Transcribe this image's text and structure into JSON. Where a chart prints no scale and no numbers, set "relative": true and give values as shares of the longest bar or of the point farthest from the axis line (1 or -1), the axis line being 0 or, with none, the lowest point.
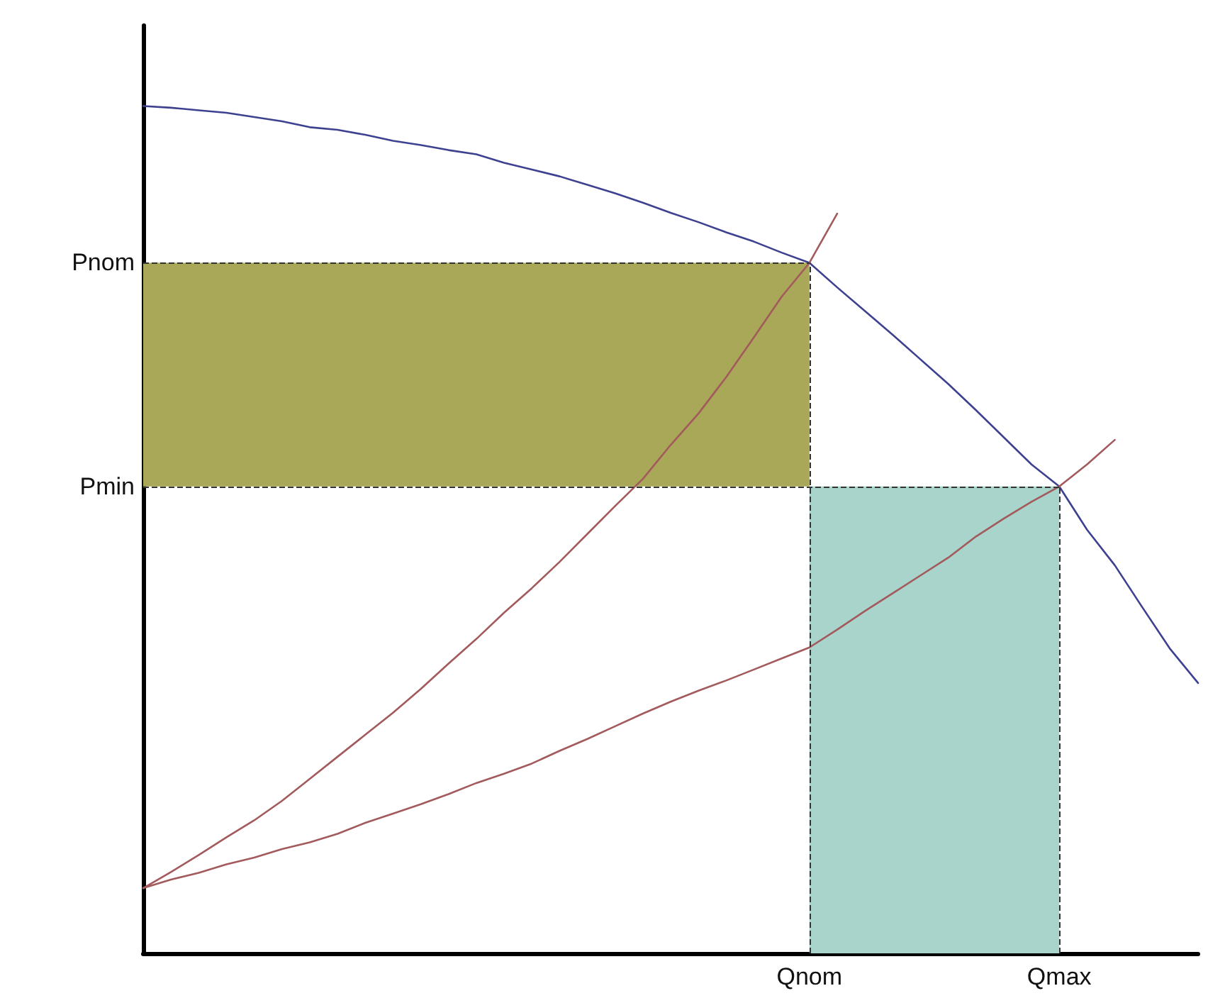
{
  "chart_data": {
    "type": "line",
    "relative": true,
    "marker": "none",
    "line_style": "solid",
    "categories": [
      null,
      null,
      null,
      null,
      null,
      null,
      null,
      null,
      null,
      null,
      null,
      null,
      null,
      null,
      null,
      null,
      null,
      null,
      null,
      null,
      null,
      null,
      null,
      null,
      "Qnom",
      null,
      null,
      null,
      null,
      null,
      null,
      null,
      null,
      "Qmax",
      null,
      null,
      null,
      null,
      null
    ],
    "series": [
      {
        "color": "#3d4190",
        "values": [
          1.0,
          0.998,
          0.995,
          0.992,
          0.987,
          0.982,
          0.975,
          0.972,
          0.966,
          0.959,
          0.954,
          0.948,
          0.943,
          0.933,
          0.925,
          0.917,
          0.907,
          0.897,
          0.886,
          0.874,
          0.863,
          0.851,
          0.84,
          0.827,
          0.815,
          0.786,
          0.758,
          0.73,
          0.701,
          0.672,
          0.641,
          0.609,
          0.577,
          0.551,
          0.5,
          0.458,
          0.408,
          0.359,
          0.319
        ]
      },
      {
        "color": "#a35a5c",
        "values": [
          0.077,
          0.096,
          0.116,
          0.137,
          0.157,
          0.18,
          0.206,
          0.232,
          0.258,
          0.284,
          0.312,
          0.342,
          0.371,
          0.402,
          0.431,
          0.462,
          0.495,
          0.528,
          0.56,
          0.6,
          0.637,
          0.68,
          0.727,
          0.775,
          0.815,
          0.873,
          null,
          null,
          null,
          null,
          null,
          null,
          null,
          null,
          null,
          null,
          null,
          null,
          null
        ]
      },
      {
        "color": "#a35a5c",
        "values": [
          0.077,
          0.087,
          0.095,
          0.105,
          0.113,
          0.123,
          0.131,
          0.141,
          0.154,
          0.165,
          0.176,
          0.188,
          0.201,
          0.212,
          0.224,
          0.239,
          0.253,
          0.268,
          0.283,
          0.297,
          0.31,
          0.322,
          0.335,
          0.348,
          0.361,
          0.382,
          0.404,
          0.425,
          0.446,
          0.467,
          0.492,
          0.513,
          0.533,
          0.551,
          0.577,
          0.606,
          null,
          null,
          null
        ]
      }
    ],
    "ref_lines": [
      {
        "axis": "y",
        "value": 0.815,
        "label": "Pnom",
        "line_style": "dashed",
        "color": "#333333"
      },
      {
        "axis": "y",
        "value": 0.551,
        "label": "Pmin",
        "line_style": "dashed",
        "color": "#333333"
      },
      {
        "axis": "x",
        "value": "Qnom",
        "line_style": "dashed",
        "color": "#333333"
      },
      {
        "axis": "x",
        "value": "Qmax",
        "line_style": "dashed",
        "color": "#333333"
      }
    ],
    "bands": [
      {
        "axis": "y",
        "from": 0.551,
        "to": 0.815,
        "color": "#a8a858"
      },
      {
        "axis": "x",
        "from": "Qnom",
        "to": "Qmax",
        "color": "#a8d4cb"
      }
    ]
  }
}
